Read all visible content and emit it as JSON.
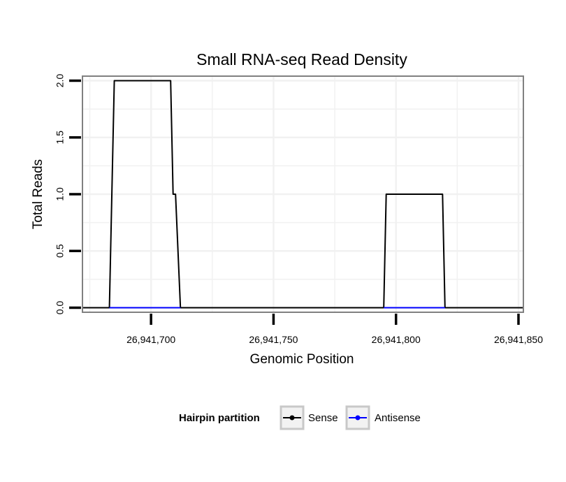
{
  "chart_data": {
    "type": "line",
    "title": "Small RNA-seq Read Density",
    "xlabel": "Genomic Position",
    "ylabel": "Total Reads",
    "xlim": [
      26941672,
      26941852
    ],
    "ylim": [
      -0.04,
      2.04
    ],
    "x_ticks": [
      26941700,
      26941750,
      26941800,
      26941850
    ],
    "x_tick_labels": [
      "26,941,700",
      "26,941,750",
      "26,941,800",
      "26,941,850"
    ],
    "y_ticks": [
      0,
      0.5,
      1,
      1.5,
      2
    ],
    "y_tick_labels": [
      "0.0",
      "0.5",
      "1.0",
      "1.5",
      "2.0"
    ],
    "grid": true,
    "legend": {
      "title": "Hairpin partition",
      "position": "bottom"
    },
    "series": [
      {
        "name": "Sense",
        "color": "#000000",
        "x": [
          26941672,
          26941683,
          26941685,
          26941708,
          26941709,
          26941710,
          26941712,
          26941795,
          26941796,
          26941819,
          26941820,
          26941852
        ],
        "y": [
          0,
          0,
          2,
          2,
          1,
          1,
          0,
          0,
          1,
          1,
          0,
          0
        ]
      },
      {
        "name": "Antisense",
        "color": "#0000ff",
        "x": [
          26941683,
          26941712,
          26941795,
          26941820
        ],
        "y": [
          0,
          0,
          0,
          0
        ],
        "segments": [
          [
            0,
            1
          ],
          [
            2,
            3
          ]
        ]
      }
    ]
  }
}
